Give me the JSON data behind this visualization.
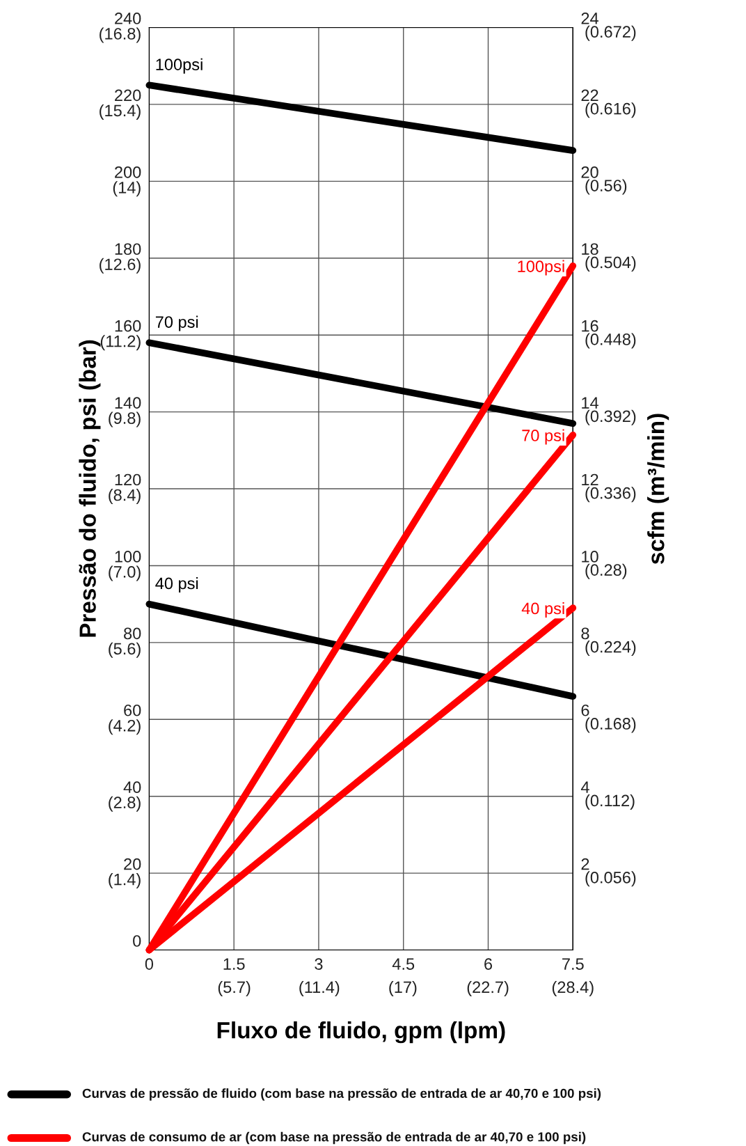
{
  "chart_data": {
    "type": "line",
    "xlabel": "Fluxo de fluido, gpm (lpm)",
    "ylabel": "Pressão do fluido, psi (bar)",
    "y2label": "scfm (m³/min)",
    "x": [
      0,
      7.5
    ],
    "series": [
      {
        "name": "100psi",
        "color": "#000000",
        "values": [
          225,
          208
        ],
        "axis": "y"
      },
      {
        "name": "70 psi",
        "color": "#000000",
        "values": [
          158,
          137
        ],
        "axis": "y"
      },
      {
        "name": "40 psi",
        "color": "#000000",
        "values": [
          90,
          66
        ],
        "axis": "y"
      },
      {
        "name": "100psi",
        "color": "#ff0000",
        "values": [
          0,
          17.8
        ],
        "axis": "y2"
      },
      {
        "name": "70 psi",
        "color": "#ff0000",
        "values": [
          0,
          13.4
        ],
        "axis": "y2"
      },
      {
        "name": "40 psi",
        "color": "#ff0000",
        "values": [
          0,
          8.9
        ],
        "axis": "y2"
      }
    ],
    "xlim": [
      0,
      7.5
    ],
    "xticks": [
      0,
      1.5,
      3,
      4.5,
      6,
      7.5
    ],
    "x2lim": [
      0,
      28.4
    ],
    "x2ticks": [
      {
        "value": 5.7,
        "label": "(5.7)"
      },
      {
        "value": 11.4,
        "label": "(11.4)"
      },
      {
        "value": 17,
        "label": "(17)"
      },
      {
        "value": 22.7,
        "label": "(22.7)"
      },
      {
        "value": 28.4,
        "label": "(28.4)"
      }
    ],
    "ylim": [
      0,
      240
    ],
    "yticks": [
      0,
      20,
      40,
      60,
      80,
      100,
      120,
      140,
      160,
      180,
      200,
      220,
      240
    ],
    "y3lim": [
      0,
      16.8
    ],
    "y3ticks": [
      {
        "value": 1.4,
        "label": "(1.4)"
      },
      {
        "value": 2.8,
        "label": "(2.8)"
      },
      {
        "value": 4.2,
        "label": "(4.2)"
      },
      {
        "value": 5.6,
        "label": "(5.6)"
      },
      {
        "value": 7.0,
        "label": "(7.0)"
      },
      {
        "value": 8.4,
        "label": "(8.4)"
      },
      {
        "value": 9.8,
        "label": "(9.8)"
      },
      {
        "value": 11.2,
        "label": "(11.2)"
      },
      {
        "value": 12.6,
        "label": "(12.6)"
      },
      {
        "value": 14,
        "label": "(14)"
      },
      {
        "value": 15.4,
        "label": "(15.4)"
      },
      {
        "value": 16.8,
        "label": "(16.8)"
      }
    ],
    "y2lim": [
      0,
      24
    ],
    "y2ticks": [
      2,
      4,
      6,
      8,
      10,
      12,
      14,
      16,
      18,
      20,
      22,
      24
    ],
    "grid": true,
    "annotations": [
      "Curvas de pressão de fluido (com base na pressão de entrada de ar 40,70 e 100 psi)",
      "Curvas de consumo de ar (com base na pressão de entrada de ar 40,70 e 100 psi)",
      "(0.056)",
      "(0.112)",
      "(0.168)",
      "(0.224)",
      "(0.28)",
      "(0.336)",
      "(0.392)",
      "(0.448)",
      "(0.504)",
      "(0.56)",
      "(0.616)",
      "(0.672)"
    ]
  }
}
